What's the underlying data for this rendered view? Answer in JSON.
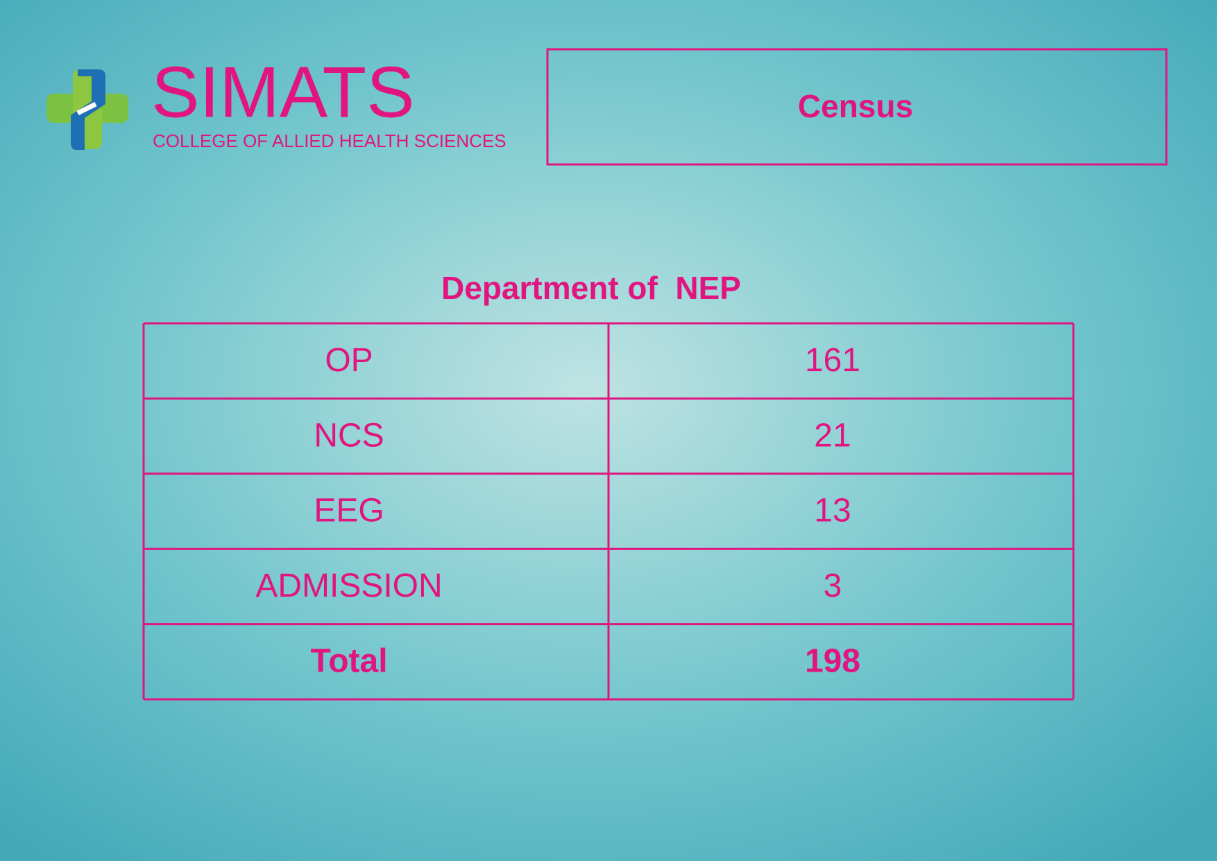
{
  "header": {
    "logo_title": "SIMATS",
    "logo_subtitle": "COLLEGE OF ALLIED HEALTH SCIENCES",
    "title": "Census"
  },
  "table": {
    "caption": "Department of  NEP",
    "rows": [
      [
        "OP",
        161
      ],
      [
        "NCS",
        21
      ],
      [
        "EEG",
        13
      ],
      [
        "ADMISSION",
        3
      ],
      [
        "Total",
        198
      ]
    ]
  }
}
